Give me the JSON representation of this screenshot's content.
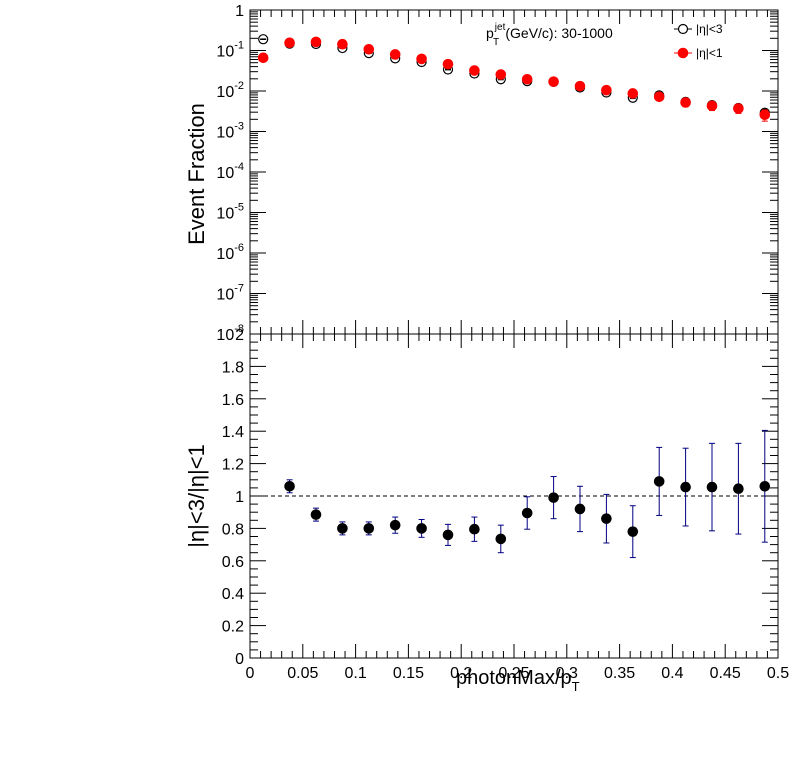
{
  "chart_data": [
    {
      "type": "scatter",
      "title": "",
      "ylabel": "Event Fraction",
      "yscale": "log",
      "xlim": [
        0,
        0.5
      ],
      "ylim_exponents": [
        -8,
        0
      ],
      "y_ticks": [
        {
          "base": "10",
          "exp": "-8"
        },
        {
          "base": "10",
          "exp": "-7"
        },
        {
          "base": "10",
          "exp": "-6"
        },
        {
          "base": "10",
          "exp": "-5"
        },
        {
          "base": "10",
          "exp": "-4"
        },
        {
          "base": "10",
          "exp": "-3"
        },
        {
          "base": "10",
          "exp": "-2"
        },
        {
          "base": "10",
          "exp": "-1"
        },
        {
          "base": "1",
          "exp": ""
        }
      ],
      "annotation": {
        "main": "p",
        "sup": "jet",
        "sub": "T",
        "rest": "(GeV/c): 30-1000"
      },
      "legend_position": "top-right",
      "x": [
        0.0125,
        0.0375,
        0.0625,
        0.0875,
        0.1125,
        0.1375,
        0.1625,
        0.1875,
        0.2125,
        0.2375,
        0.2625,
        0.2875,
        0.3125,
        0.3375,
        0.3625,
        0.3875,
        0.4125,
        0.4375,
        0.4625,
        0.4875
      ],
      "series": [
        {
          "name": "|η|<3",
          "marker": "open-circle",
          "color": "#000000",
          "values": [
            0.19,
            0.148,
            0.145,
            0.115,
            0.086,
            0.064,
            0.052,
            0.034,
            0.027,
            0.0195,
            0.0175,
            0.0168,
            0.0122,
            0.0092,
            0.0068,
            0.0078,
            0.0054,
            0.0045,
            0.0038,
            0.0029
          ],
          "errors": [
            0.003,
            0.002,
            0.002,
            0.002,
            0.0015,
            0.0012,
            0.001,
            0.0008,
            0.0007,
            0.0006,
            0.0005,
            0.0005,
            0.0004,
            0.0004,
            0.0003,
            0.0004,
            0.0003,
            0.0003,
            0.0003,
            0.0006
          ]
        },
        {
          "name": "|η|<1",
          "marker": "filled-circle",
          "color": "#ff0000",
          "values": [
            0.066,
            0.155,
            0.163,
            0.143,
            0.107,
            0.08,
            0.062,
            0.046,
            0.032,
            0.0255,
            0.0195,
            0.017,
            0.0132,
            0.0105,
            0.0087,
            0.0072,
            0.0052,
            0.0043,
            0.0037,
            0.0026
          ],
          "errors": [
            0.005,
            0.01,
            0.01,
            0.009,
            0.007,
            0.006,
            0.005,
            0.004,
            0.003,
            0.0025,
            0.002,
            0.002,
            0.0017,
            0.0015,
            0.0014,
            0.0013,
            0.0011,
            0.001,
            0.0009,
            0.0008
          ]
        }
      ]
    },
    {
      "type": "scatter",
      "xlabel": {
        "main": "photonMax/p",
        "sub": "T"
      },
      "ylabel": "|η|<3/|η|<1",
      "xlim": [
        0,
        0.5
      ],
      "ylim": [
        0,
        2
      ],
      "x_ticks": [
        "0",
        "0.05",
        "0.1",
        "0.15",
        "0.2",
        "0.25",
        "0.3",
        "0.35",
        "0.4",
        "0.45",
        "0.5"
      ],
      "y_ticks": [
        "0",
        "0.2",
        "0.4",
        "0.6",
        "0.8",
        "1",
        "1.2",
        "1.4",
        "1.6",
        "1.8",
        "2"
      ],
      "reference_line": 1,
      "x": [
        0.0375,
        0.0625,
        0.0875,
        0.1125,
        0.1375,
        0.1625,
        0.1875,
        0.2125,
        0.2375,
        0.2625,
        0.2875,
        0.3125,
        0.3375,
        0.3625,
        0.3875,
        0.4125,
        0.4375,
        0.4625,
        0.4875
      ],
      "series": [
        {
          "marker": "filled-circle",
          "color": "#000000",
          "error_color": "#000080",
          "values": [
            1.06,
            0.885,
            0.8,
            0.8,
            0.82,
            0.8,
            0.76,
            0.795,
            0.735,
            0.895,
            0.99,
            0.92,
            0.86,
            0.78,
            1.09,
            1.055,
            1.055,
            1.045,
            1.06
          ],
          "errors": [
            0.04,
            0.04,
            0.04,
            0.04,
            0.05,
            0.055,
            0.065,
            0.075,
            0.085,
            0.1,
            0.13,
            0.14,
            0.15,
            0.16,
            0.21,
            0.24,
            0.27,
            0.28,
            0.345
          ]
        }
      ]
    }
  ]
}
